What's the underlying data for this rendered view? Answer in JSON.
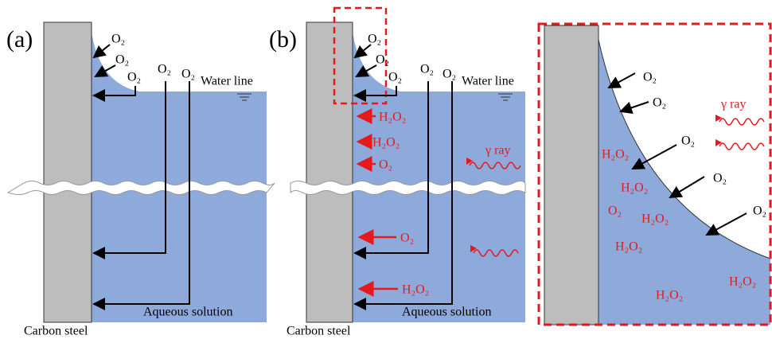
{
  "panel_a": {
    "label": "(a)",
    "oxygen_labels": [
      "O₂",
      "O₂",
      "O₂",
      "O₂",
      "O₂"
    ],
    "water_line": "Water line",
    "aqueous_solution": "Aqueous solution",
    "material": "Carbon steel"
  },
  "panel_b": {
    "label": "(b)",
    "oxygen_labels": [
      "O₂",
      "O₂",
      "O₂",
      "O₂",
      "O₂"
    ],
    "water_line": "Water line",
    "aqueous_solution": "Aqueous solution",
    "material": "Carbon steel",
    "species_labels": [
      "H₂O₂",
      "H₂O₂",
      "O₂",
      "O₂",
      "H₂O₂"
    ],
    "radiation": "γ ray"
  },
  "panel_c": {
    "oxygen_labels": [
      "O₂",
      "O₂",
      "O₂",
      "O₂",
      "O₂"
    ],
    "species_labels": [
      "H₂O₂",
      "H₂O₂",
      "O₂",
      "H₂O₂",
      "H₂O₂",
      "H₂O₂",
      "H₂O₂"
    ],
    "radiation": "γ ray"
  }
}
